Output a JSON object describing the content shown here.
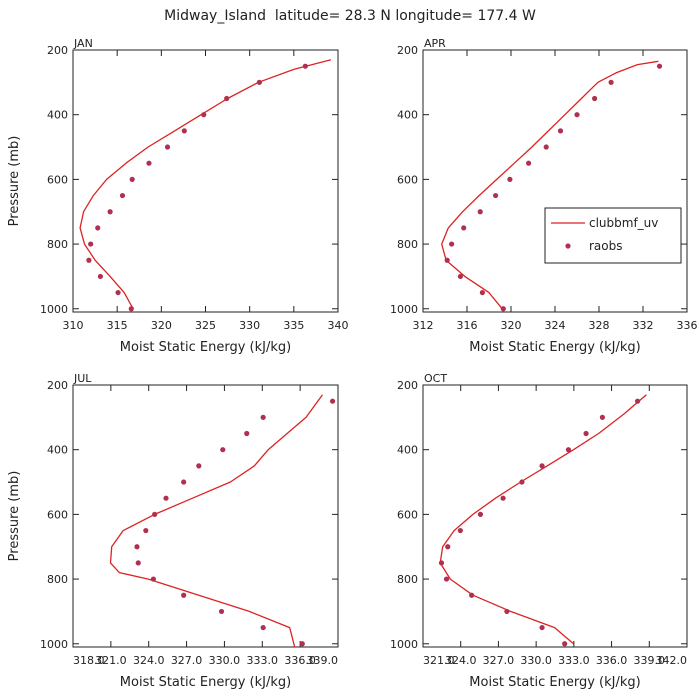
{
  "figure_title": "Midway_Island  latitude= 28.3 N longitude= 177.4 W",
  "colors": {
    "model_line": "#dd2222",
    "obs_marker": "#b03050",
    "axis": "#222222"
  },
  "legend": {
    "model": "clubbmf_uv",
    "obs": "raobs"
  },
  "chart_data": [
    {
      "type": "line",
      "panel": "JAN",
      "xlabel": "Moist Static Energy (kJ/kg)",
      "ylabel": "Pressure (mb)",
      "xlim": [
        310,
        340
      ],
      "ylim": [
        1010,
        200
      ],
      "x_ticks": [
        310,
        315,
        320,
        325,
        330,
        335,
        340
      ],
      "x_tick_labels": [
        "310",
        "315",
        "320",
        "325",
        "330",
        "335",
        "340"
      ],
      "y_ticks": [
        200,
        400,
        600,
        800,
        1000
      ],
      "y_tick_labels": [
        "200",
        "400",
        "600",
        "800",
        "1000"
      ],
      "show_ylabel": true,
      "show_legend": false,
      "series": [
        {
          "name": "clubbmf_uv",
          "style": "line",
          "x": [
            316.8,
            315.8,
            314.2,
            312.5,
            311.3,
            310.8,
            311.2,
            312.3,
            313.8,
            316.0,
            318.5,
            321.5,
            324.5,
            327.5,
            331.0,
            335.0,
            339.2
          ],
          "y": [
            1000,
            950,
            900,
            850,
            800,
            750,
            700,
            650,
            600,
            550,
            500,
            450,
            400,
            350,
            300,
            260,
            230
          ]
        },
        {
          "name": "raobs",
          "style": "marker",
          "x": [
            316.6,
            315.1,
            313.1,
            311.8,
            312.0,
            312.8,
            314.2,
            315.6,
            316.7,
            318.6,
            320.7,
            322.6,
            324.8,
            327.4,
            331.1,
            336.3
          ],
          "y": [
            1000,
            950,
            900,
            850,
            800,
            750,
            700,
            650,
            600,
            550,
            500,
            450,
            400,
            350,
            300,
            250
          ]
        }
      ]
    },
    {
      "type": "line",
      "panel": "APR",
      "xlabel": "Moist Static Energy (kJ/kg)",
      "ylabel": "",
      "xlim": [
        312,
        336
      ],
      "ylim": [
        1010,
        200
      ],
      "x_ticks": [
        312,
        316,
        320,
        324,
        328,
        332,
        336
      ],
      "x_tick_labels": [
        "312",
        "316",
        "320",
        "324",
        "328",
        "332",
        "336"
      ],
      "y_ticks": [
        200,
        400,
        600,
        800,
        1000
      ],
      "y_tick_labels": [
        "200",
        "400",
        "600",
        "800",
        "1000"
      ],
      "show_ylabel": false,
      "show_legend": true,
      "series": [
        {
          "name": "clubbmf_uv",
          "style": "line",
          "x": [
            319.2,
            318.0,
            315.8,
            314.1,
            313.7,
            314.3,
            315.6,
            317.1,
            318.7,
            320.3,
            321.9,
            323.4,
            324.9,
            326.4,
            327.9,
            329.6,
            331.5,
            333.4
          ],
          "y": [
            1000,
            950,
            900,
            850,
            800,
            750,
            700,
            650,
            600,
            550,
            500,
            450,
            400,
            350,
            300,
            270,
            245,
            235
          ]
        },
        {
          "name": "raobs",
          "style": "marker",
          "x": [
            319.3,
            317.4,
            315.4,
            314.2,
            314.6,
            315.7,
            317.2,
            318.6,
            319.9,
            321.6,
            323.2,
            324.5,
            326.0,
            327.6,
            329.1,
            333.5
          ],
          "y": [
            1000,
            950,
            900,
            850,
            800,
            750,
            700,
            650,
            600,
            550,
            500,
            450,
            400,
            350,
            300,
            250
          ]
        }
      ]
    },
    {
      "type": "line",
      "panel": "JUL",
      "xlabel": "Moist Static Energy (kJ/kg)",
      "ylabel": "Pressure (mb)",
      "xlim": [
        318.03,
        339.03
      ],
      "ylim": [
        1010,
        200
      ],
      "x_ticks": [
        318.03,
        321.03,
        324.03,
        327.03,
        330.03,
        333.03,
        336.03,
        339.03
      ],
      "x_tick_labels": [
        "318.0",
        "321.0",
        "324.0",
        "327.0",
        "330.0",
        "333.0",
        "336.0",
        "339.0"
      ],
      "y_ticks": [
        200,
        400,
        600,
        800,
        1000
      ],
      "y_tick_labels": [
        "200",
        "400",
        "600",
        "800",
        "1000"
      ],
      "show_ylabel": true,
      "show_legend": false,
      "series": [
        {
          "name": "clubbmf_uv",
          "style": "line",
          "x": [
            335.6,
            335.2,
            332.0,
            328.0,
            324.0,
            321.7,
            321.0,
            321.1,
            322.0,
            324.5,
            327.5,
            330.5,
            332.4,
            333.5,
            335.0,
            336.5,
            337.8
          ],
          "y": [
            1010,
            950,
            900,
            850,
            800,
            780,
            750,
            700,
            650,
            600,
            550,
            500,
            450,
            400,
            350,
            300,
            230
          ]
        },
        {
          "name": "raobs",
          "style": "marker",
          "x": [
            336.2,
            333.1,
            329.8,
            326.8,
            324.4,
            323.2,
            323.1,
            323.8,
            324.5,
            325.4,
            326.8,
            328.0,
            329.9,
            331.8,
            333.1,
            338.6
          ],
          "y": [
            1000,
            950,
            900,
            850,
            800,
            750,
            700,
            650,
            600,
            550,
            500,
            450,
            400,
            350,
            300,
            250
          ]
        }
      ]
    },
    {
      "type": "line",
      "panel": "OCT",
      "xlabel": "Moist Static Energy (kJ/kg)",
      "ylabel": "",
      "xlim": [
        321.03,
        342.03
      ],
      "ylim": [
        1010,
        200
      ],
      "x_ticks": [
        321.03,
        324.03,
        327.03,
        330.03,
        333.03,
        336.03,
        339.03,
        342.03
      ],
      "x_tick_labels": [
        "321.0",
        "324.0",
        "327.0",
        "330.0",
        "333.0",
        "336.0",
        "339.0",
        "342.0"
      ],
      "y_ticks": [
        200,
        400,
        600,
        800,
        1000
      ],
      "y_tick_labels": [
        "200",
        "400",
        "600",
        "800",
        "1000"
      ],
      "show_ylabel": false,
      "show_legend": false,
      "series": [
        {
          "name": "clubbmf_uv",
          "style": "line",
          "x": [
            333.0,
            331.5,
            328.0,
            325.0,
            323.2,
            322.4,
            322.6,
            323.5,
            325.0,
            326.8,
            328.8,
            330.9,
            333.0,
            335.0,
            337.0,
            338.8
          ],
          "y": [
            1000,
            950,
            900,
            850,
            800,
            750,
            700,
            650,
            600,
            550,
            500,
            450,
            400,
            350,
            290,
            230
          ]
        },
        {
          "name": "raobs",
          "style": "marker",
          "x": [
            332.3,
            330.5,
            327.7,
            324.9,
            322.9,
            322.5,
            323.0,
            324.0,
            325.6,
            327.4,
            328.9,
            330.5,
            332.6,
            334.0,
            335.3,
            338.1
          ],
          "y": [
            1000,
            950,
            900,
            850,
            800,
            750,
            700,
            650,
            600,
            550,
            500,
            450,
            400,
            350,
            300,
            250
          ]
        }
      ]
    }
  ]
}
